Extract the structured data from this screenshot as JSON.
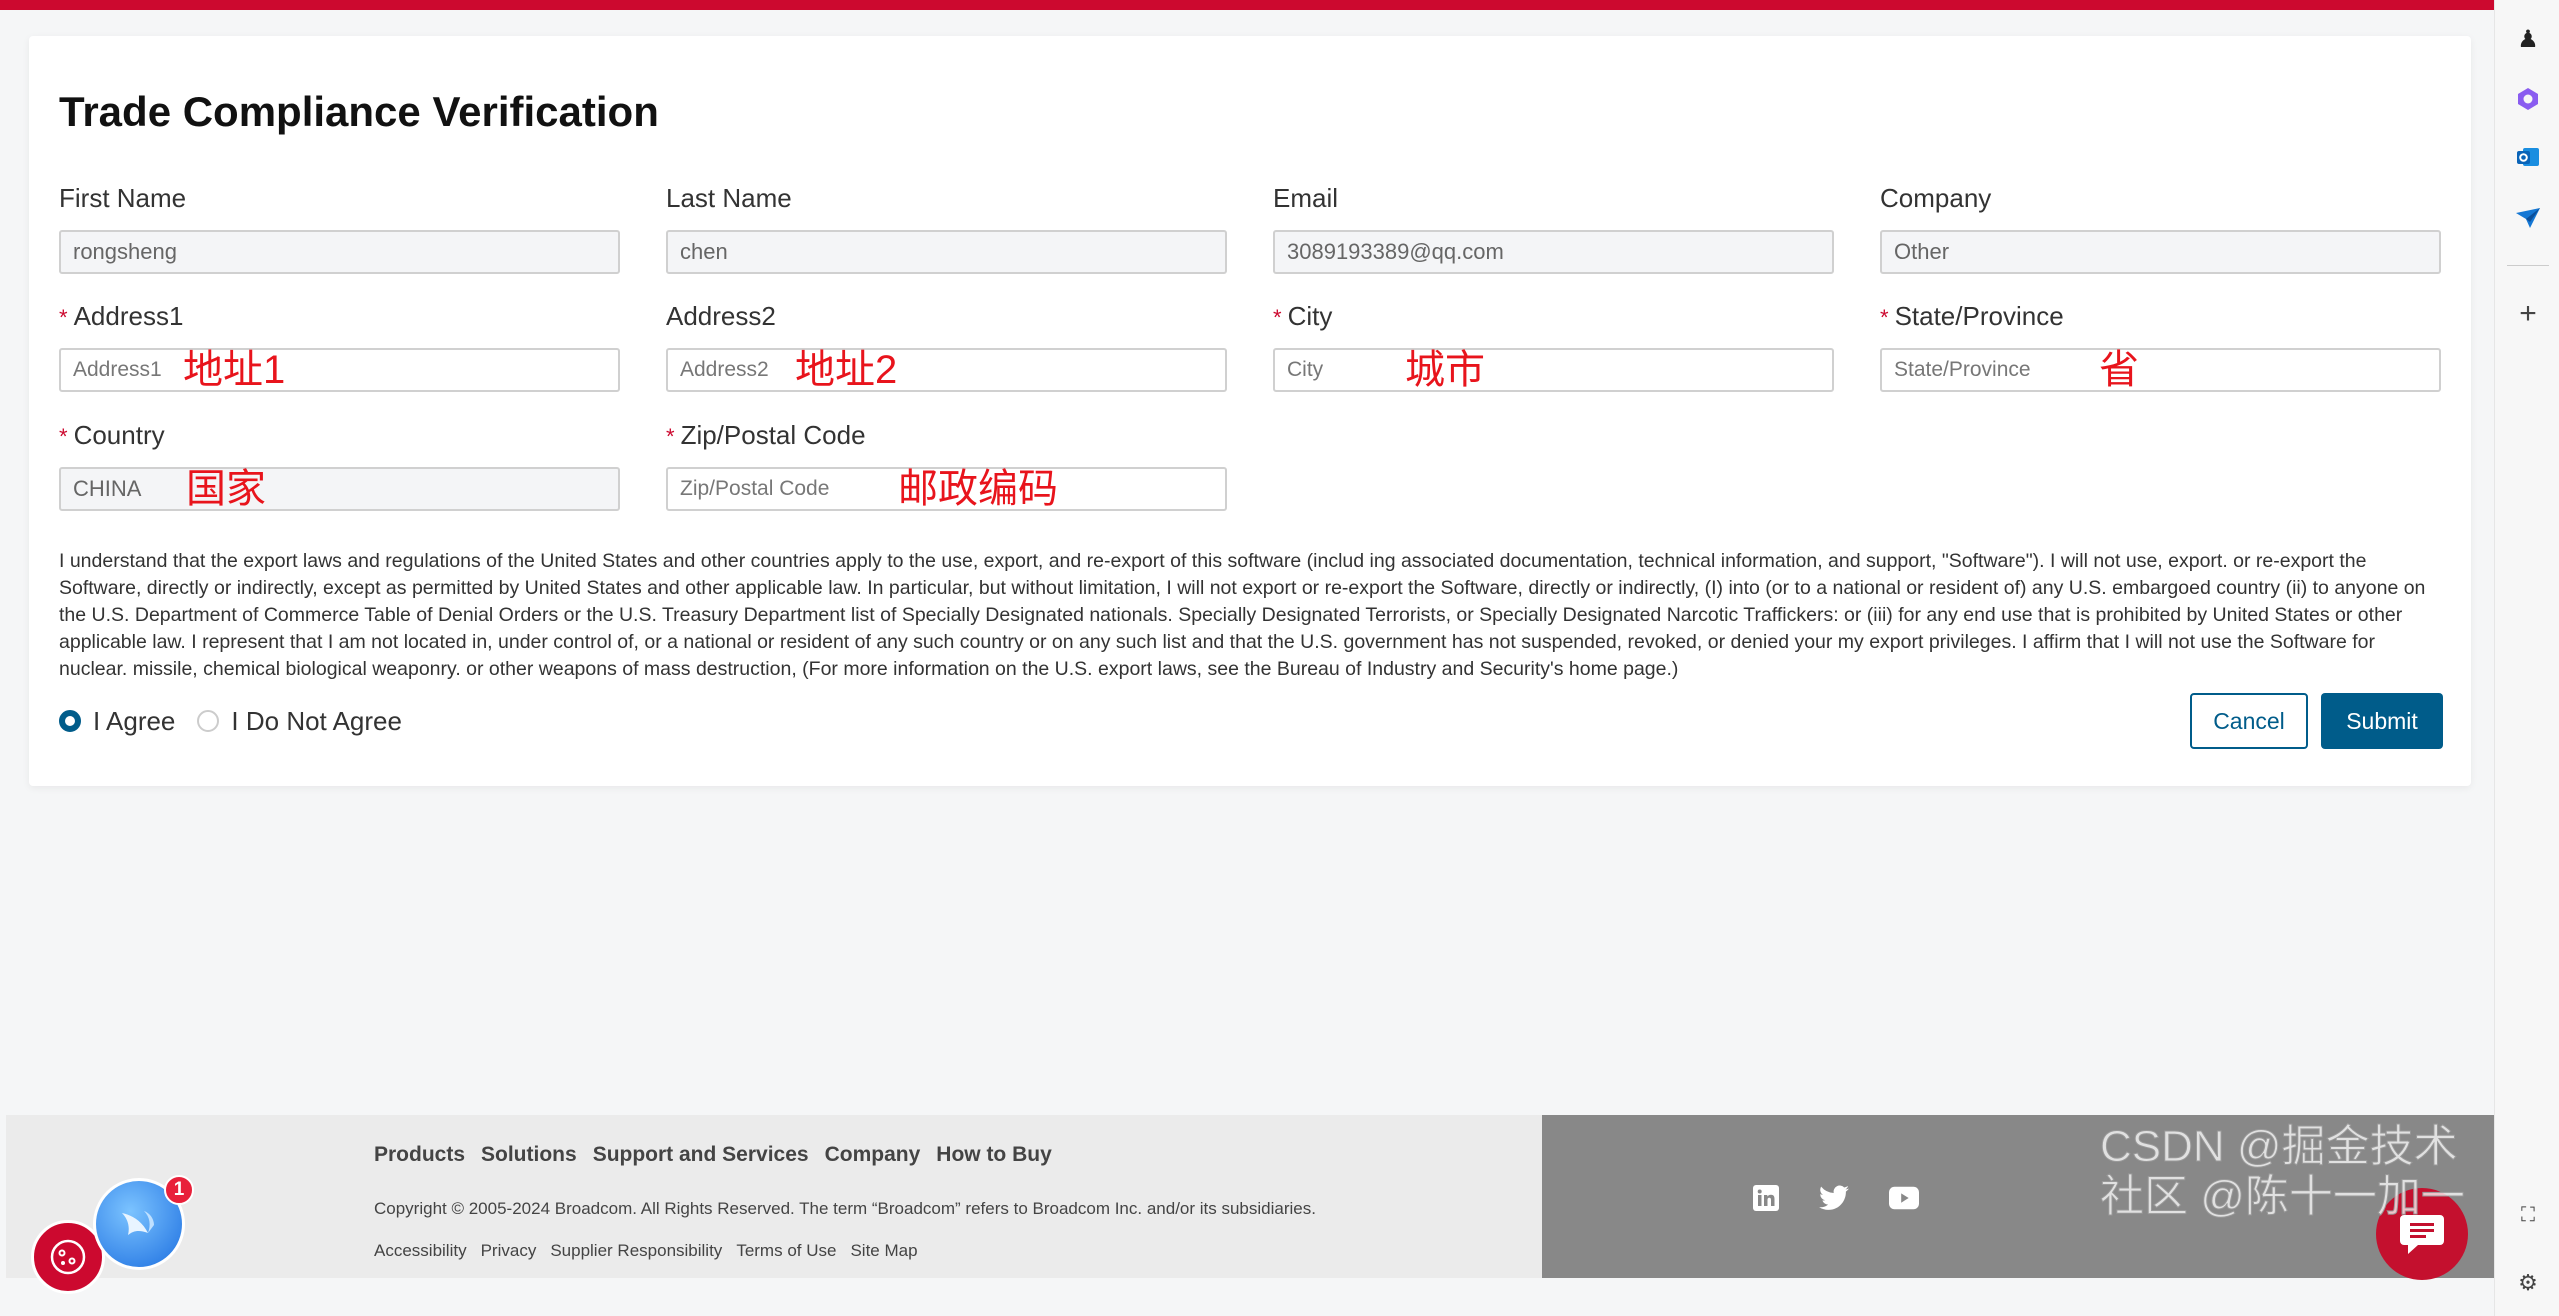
{
  "form": {
    "title": "Trade Compliance Verification",
    "fields": [
      {
        "label": "First Name",
        "value": "rongsheng",
        "required": false
      },
      {
        "label": "Last Name",
        "value": "chen",
        "required": false
      },
      {
        "label": "Email",
        "value": "3089193389@qq.com",
        "required": false
      },
      {
        "label": "Company",
        "value": "Other",
        "required": false
      },
      {
        "label": "Address1",
        "placeholder": "Address1",
        "required": true,
        "annotation": "地址1"
      },
      {
        "label": "Address2",
        "placeholder": "Address2",
        "required": false,
        "annotation": "地址2"
      },
      {
        "label": "City",
        "placeholder": "City",
        "required": true,
        "annotation": "城市"
      },
      {
        "label": "State/Province",
        "placeholder": "State/Province",
        "required": true,
        "annotation": "省"
      },
      {
        "label": "Country",
        "value": "CHINA",
        "required": true,
        "annotation": "国家"
      },
      {
        "label": "Zip/Postal Code",
        "placeholder": "Zip/Postal Code",
        "required": true,
        "annotation": "邮政编码"
      }
    ],
    "required_mark": "*",
    "legal_text": "I understand that the export laws and regulations of the United States and other countries apply to the use, export, and re-export of this software (includ ing associated documentation, technical information, and support, \"Software\"). I will not use, export. or re-export the Software, directly or indirectly, except as permitted by United States and other applicable law. In particular, but without limitation, I will not export or re-export the Software, directly or indirectly, (I) into (or to a national or resident of) any U.S. embargoed country (ii) to anyone on the U.S. Department of Commerce Table of Denial Orders or the U.S. Treasury Department list of Specially Designated nationals. Specially Designated Terrorists, or Specially Designated Narcotic Traffickers: or (iii) for any end use that is prohibited by United States or other applicable law. I represent that I am not located in, under control of, or a national or resident of any such country or on any such list and that the U.S. government has not suspended, revoked, or denied your my export privileges. I affirm that I will not use the Software for nuclear. missile, chemical biological weaponry. or other weapons of mass destruction, (For more information on the U.S. export laws, see the Bureau of Industry and Security's home page.)",
    "agree_label": "I Agree",
    "disagree_label": "I Do Not Agree",
    "selected": "I Agree",
    "cancel_label": "Cancel",
    "submit_label": "Submit"
  },
  "footer": {
    "nav": [
      "Products",
      "Solutions",
      "Support and Services",
      "Company",
      "How to Buy"
    ],
    "copyright": "Copyright © 2005-2024 Broadcom. All Rights Reserved. The term “Broadcom” refers to Broadcom Inc. and/or its subsidiaries.",
    "links": [
      "Accessibility",
      "Privacy",
      "Supplier Responsibility",
      "Terms of Use",
      "Site Map"
    ],
    "social": [
      "linkedin-icon",
      "twitter-icon",
      "youtube-icon"
    ]
  },
  "widgets": {
    "notification_count": "1"
  },
  "watermark": "CSDN @掘金技术社区 @陈十一加一",
  "colors": {
    "brand_red": "#cc092f",
    "primary": "#005c8a",
    "annotation": "#e8141c"
  }
}
